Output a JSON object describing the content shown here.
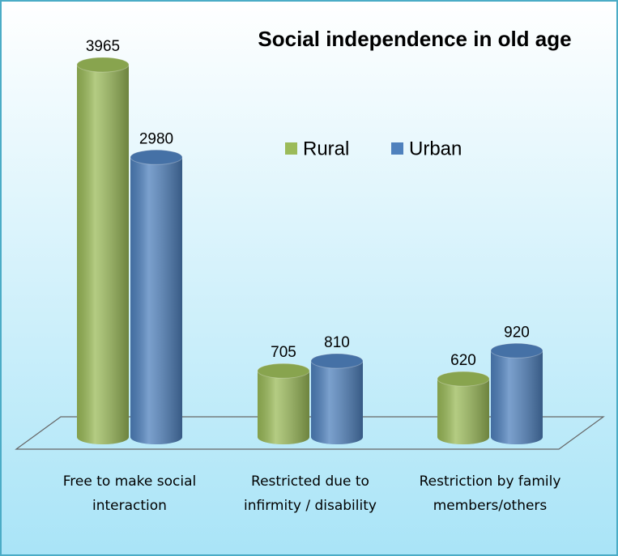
{
  "chart_data": {
    "type": "bar",
    "title": "Social independence in old age",
    "categories": [
      "Free to make social interaction",
      "Restricted due to infirmity / disability",
      "Restriction by family members/others"
    ],
    "series": [
      {
        "name": "Rural",
        "color": "#9bbb59",
        "values": [
          3965,
          705,
          620
        ]
      },
      {
        "name": "Urban",
        "color": "#4f81bd",
        "values": [
          2980,
          810,
          920
        ]
      }
    ]
  }
}
